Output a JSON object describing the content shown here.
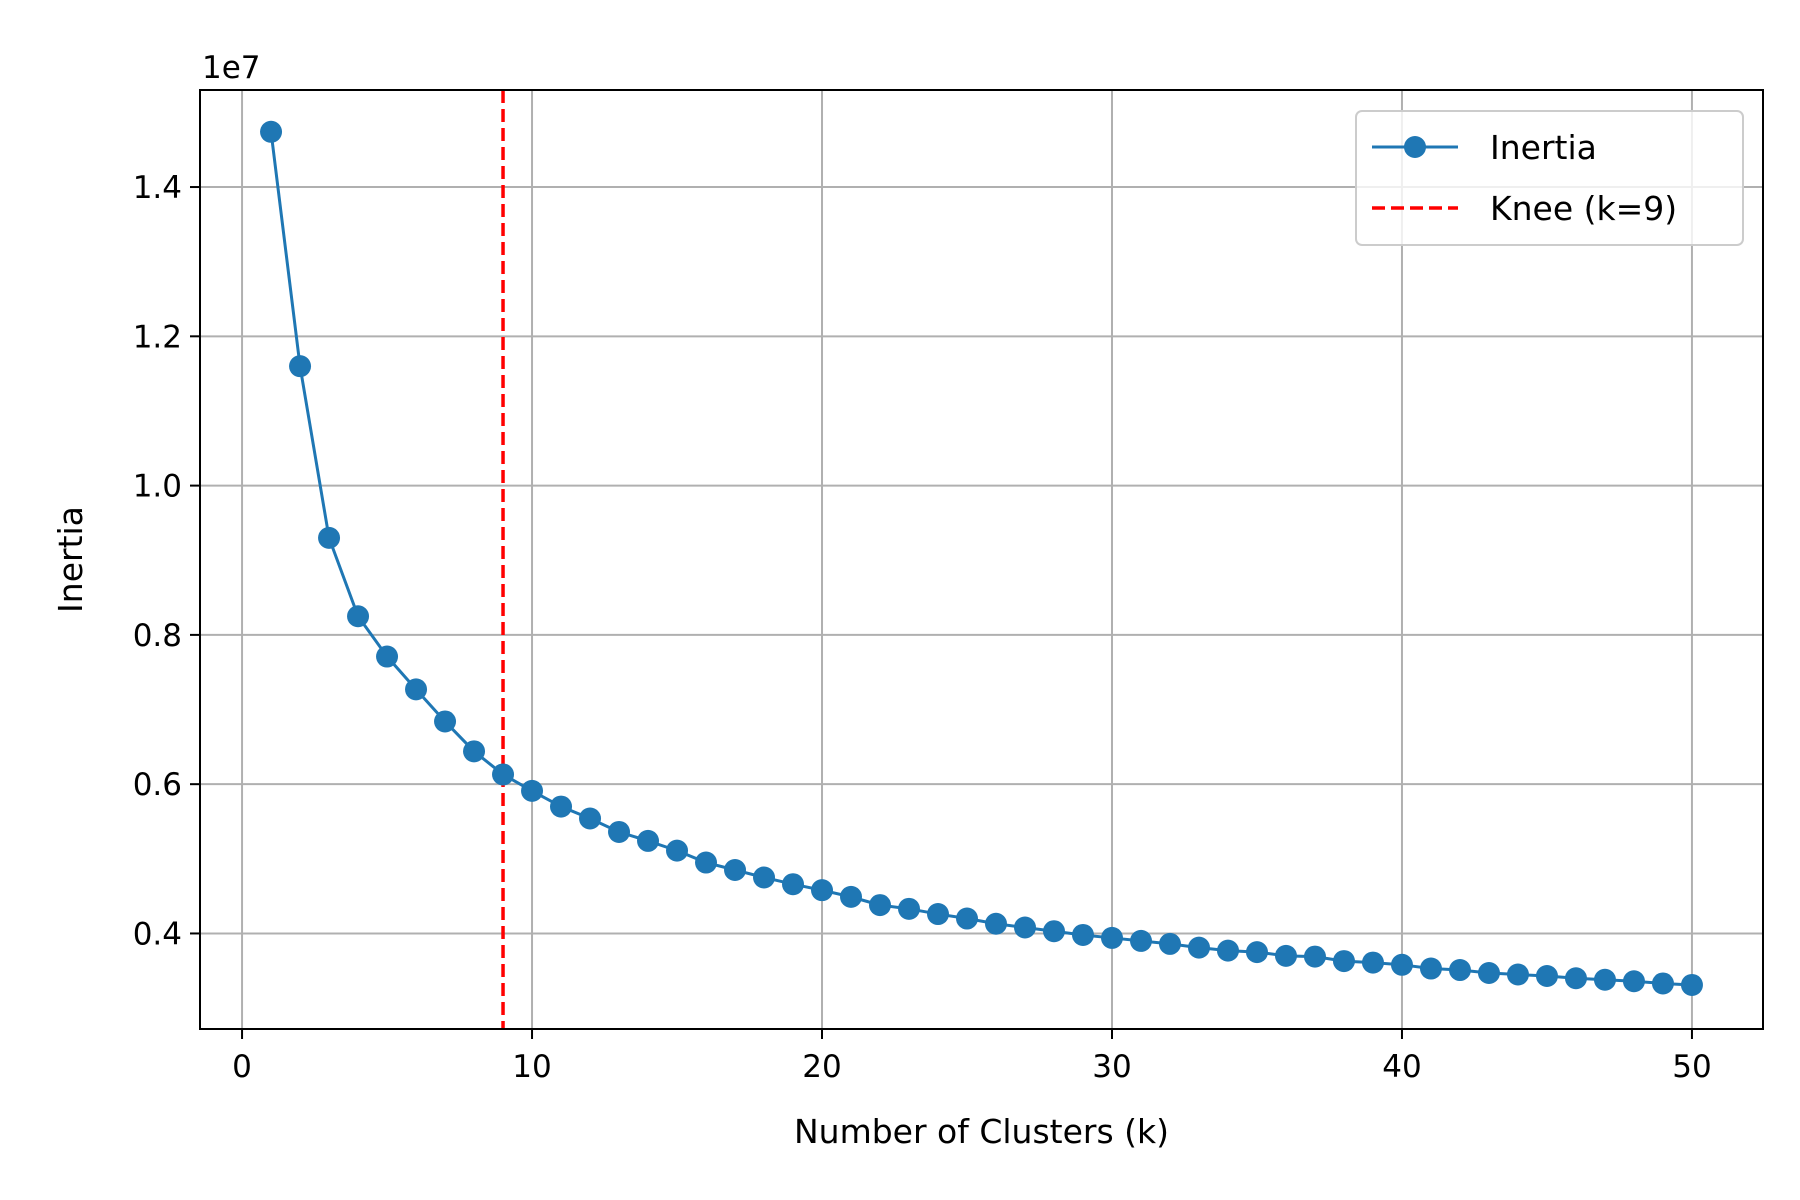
{
  "chart_data": {
    "type": "line",
    "xlabel": "Number of Clusters (k)",
    "ylabel": "Inertia",
    "y_offset_label": "1e7",
    "y_scale_factor": 10000000,
    "xlim": [
      -1.45,
      52.45
    ],
    "ylim": [
      0.272,
      1.53
    ],
    "x_ticks": [
      0,
      10,
      20,
      30,
      40,
      50
    ],
    "y_ticks": [
      0.4,
      0.6,
      0.8,
      1.0,
      1.2,
      1.4
    ],
    "y_tick_labels": [
      "0.4",
      "0.6",
      "0.8",
      "1.0",
      "1.2",
      "1.4"
    ],
    "grid": true,
    "legend_position": "upper right",
    "colors": {
      "series": "#1f77b4",
      "knee": "#ff0000",
      "grid": "#b0b0b0"
    },
    "series": [
      {
        "name": "Inertia",
        "style": "line-with-markers",
        "x": [
          1,
          2,
          3,
          4,
          5,
          6,
          7,
          8,
          9,
          10,
          11,
          12,
          13,
          14,
          15,
          16,
          17,
          18,
          19,
          20,
          21,
          22,
          23,
          24,
          25,
          26,
          27,
          28,
          29,
          30,
          31,
          32,
          33,
          34,
          35,
          36,
          37,
          38,
          39,
          40,
          41,
          42,
          43,
          44,
          45,
          46,
          47,
          48,
          49,
          50
        ],
        "y": [
          1.474,
          1.16,
          0.93,
          0.825,
          0.771,
          0.727,
          0.684,
          0.644,
          0.613,
          0.591,
          0.57,
          0.554,
          0.536,
          0.524,
          0.511,
          0.495,
          0.485,
          0.475,
          0.466,
          0.458,
          0.449,
          0.438,
          0.433,
          0.426,
          0.42,
          0.413,
          0.408,
          0.403,
          0.398,
          0.394,
          0.39,
          0.386,
          0.381,
          0.377,
          0.375,
          0.37,
          0.369,
          0.363,
          0.361,
          0.358,
          0.353,
          0.351,
          0.347,
          0.345,
          0.343,
          0.34,
          0.338,
          0.336,
          0.333,
          0.331
        ]
      }
    ],
    "vlines": [
      {
        "name": "Knee (k=9)",
        "x": 9,
        "style": "dashed"
      }
    ]
  }
}
